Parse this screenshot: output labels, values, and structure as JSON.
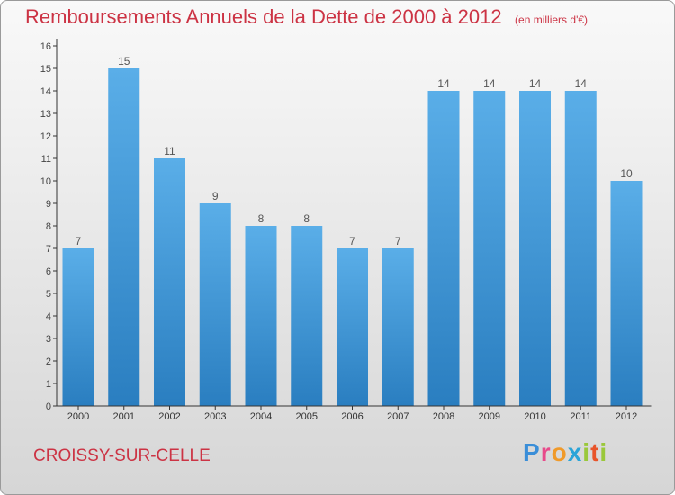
{
  "header": {
    "title": "Remboursements Annuels de la Dette de 2000 à 2012",
    "subtitle": "(en milliers d'€)"
  },
  "footer": {
    "town": "CROISSY-SUR-CELLE",
    "logo": "Proxiti"
  },
  "colors": {
    "title": "#cc3344",
    "bar_top": "#5aaee8",
    "bar_bottom": "#2a7ec0"
  },
  "chart_data": {
    "type": "bar",
    "title": "Remboursements Annuels de la Dette de 2000 à 2012",
    "subtitle": "(en milliers d'€)",
    "categories": [
      "2000",
      "2001",
      "2002",
      "2003",
      "2004",
      "2005",
      "2006",
      "2007",
      "2008",
      "2009",
      "2010",
      "2011",
      "2012"
    ],
    "values": [
      7,
      15,
      11,
      9,
      8,
      8,
      7,
      7,
      14,
      14,
      14,
      14,
      10
    ],
    "data_labels": [
      "7",
      "15",
      "11",
      "9",
      "8",
      "8",
      "7",
      "7",
      "14",
      "14",
      "14",
      "14",
      "10"
    ],
    "ylim": [
      0,
      16
    ],
    "y_ticks": [
      "0",
      "1",
      "2",
      "3",
      "4",
      "5",
      "6",
      "7",
      "8",
      "9",
      "10",
      "11",
      "12",
      "13",
      "14",
      "15",
      "16"
    ],
    "xlabel": "",
    "ylabel": "",
    "grid": false
  }
}
